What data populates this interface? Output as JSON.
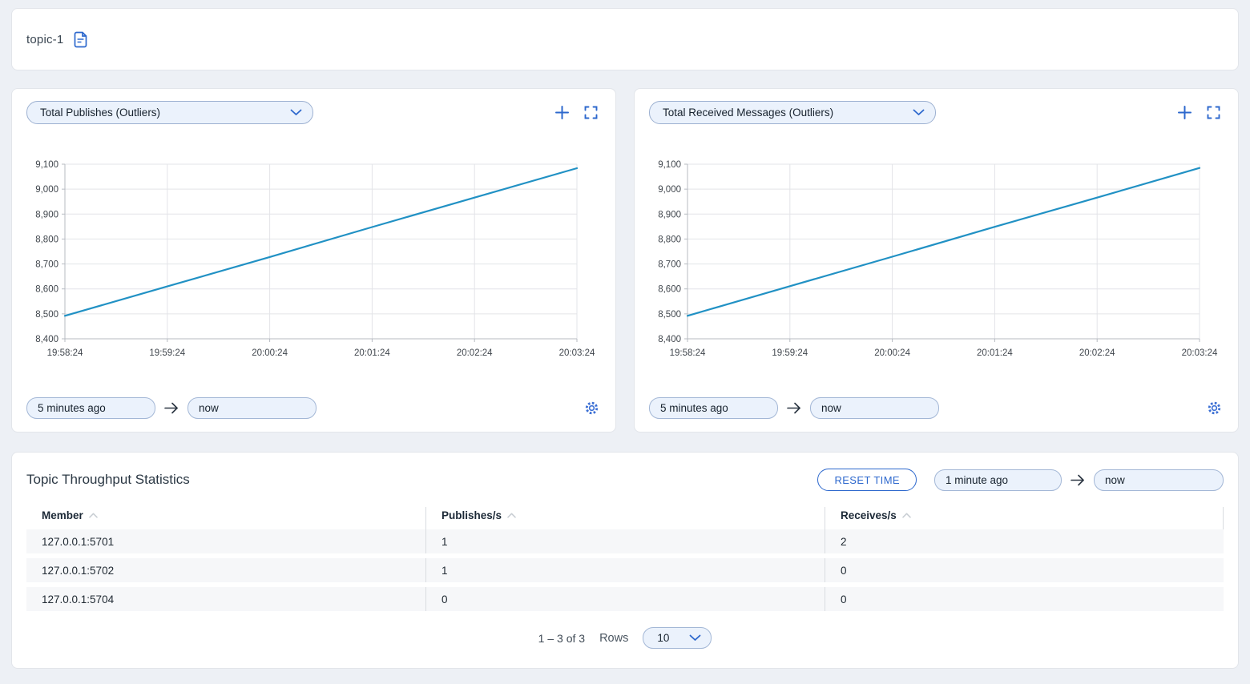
{
  "colors": {
    "accent": "#2d68cd",
    "chart_line": "#2191c4",
    "grid": "#e3e4e8",
    "axis": "#b7bbc2",
    "tick_text": "#40464d",
    "page_bg": "#edf0f5",
    "input_bg": "#ebf2fc",
    "row_bg": "#f6f7f9"
  },
  "topic_bar": {
    "title": "topic-1"
  },
  "charts": [
    {
      "selector_label": "Total Publishes (Outliers)",
      "time_from": "5 minutes ago",
      "time_to": "now",
      "chart_data": {
        "type": "line",
        "x": [
          "19:58:24",
          "19:59:24",
          "20:00:24",
          "20:01:24",
          "20:02:24",
          "20:03:24"
        ],
        "series": [
          {
            "name": "Total Publishes (Outliers)",
            "values": [
              8492,
              8610,
              8728,
              8848,
              8966,
              9084
            ]
          }
        ],
        "ylim": [
          8400,
          9100
        ],
        "ytick_step": 100,
        "grid": true,
        "legend": false,
        "line_color": "#2191c4"
      }
    },
    {
      "selector_label": "Total Received Messages (Outliers)",
      "time_from": "5 minutes ago",
      "time_to": "now",
      "chart_data": {
        "type": "line",
        "x": [
          "19:58:24",
          "19:59:24",
          "20:00:24",
          "20:01:24",
          "20:02:24",
          "20:03:24"
        ],
        "series": [
          {
            "name": "Total Received Messages (Outliers)",
            "values": [
              8492,
              8611,
              8729,
              8849,
              8966,
              9085
            ]
          }
        ],
        "ylim": [
          8400,
          9100
        ],
        "ytick_step": 100,
        "grid": true,
        "legend": false,
        "line_color": "#2191c4"
      }
    }
  ],
  "statistics": {
    "title": "Topic Throughput Statistics",
    "reset_button": "RESET TIME",
    "time_from": "1 minute ago",
    "time_to": "now",
    "table": {
      "columns": [
        "Member",
        "Publishes/s",
        "Receives/s"
      ],
      "rows": [
        [
          "127.0.0.1:5701",
          "1",
          "2"
        ],
        [
          "127.0.0.1:5702",
          "1",
          "0"
        ],
        [
          "127.0.0.1:5704",
          "0",
          "0"
        ]
      ]
    },
    "pagination": {
      "range": "1 – 3 of 3",
      "rows_label": "Rows",
      "rows_per_page": "10"
    }
  }
}
